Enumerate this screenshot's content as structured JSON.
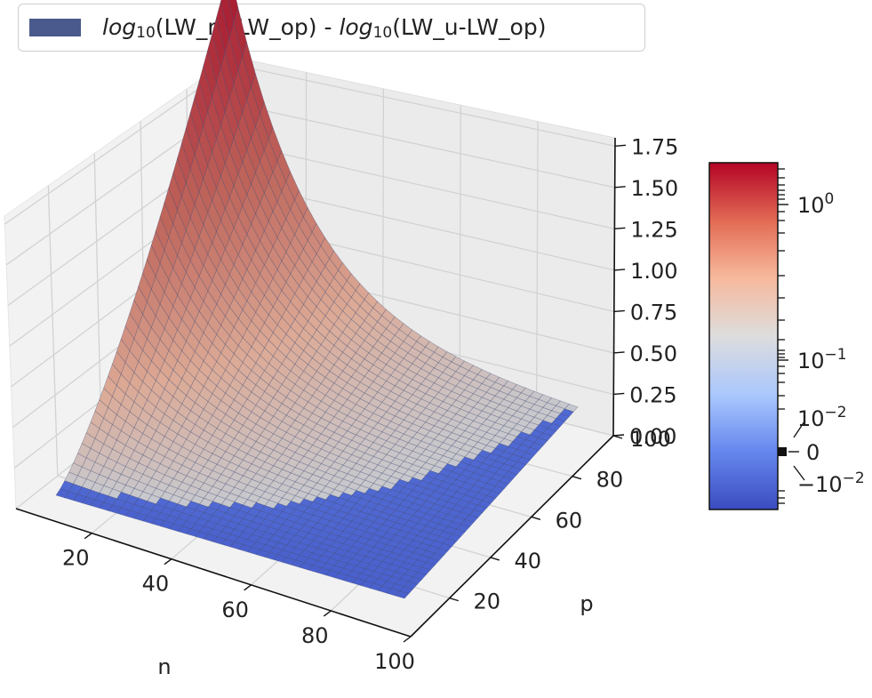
{
  "legend": {
    "label_prefix": "log",
    "label_base": "10",
    "label_mid": "(LW_m-LW_op) - ",
    "label_suffix": "(LW_u-LW_op)",
    "color": "#4a5a8c"
  },
  "chart_data": {
    "type": "surface3d",
    "title": "",
    "xlabel": "n",
    "ylabel": "p",
    "zlabel": "",
    "xlim": [
      1,
      100
    ],
    "ylim": [
      1,
      100
    ],
    "zlim": [
      0,
      1.8
    ],
    "x_ticks": [
      "20",
      "40",
      "60",
      "80",
      "100"
    ],
    "y_ticks": [
      "20",
      "40",
      "60",
      "80",
      "100"
    ],
    "z_ticks": [
      "0.00",
      "0.25",
      "0.50",
      "0.75",
      "1.00",
      "1.25",
      "1.50",
      "1.75"
    ],
    "z_tick_values": [
      0,
      0.25,
      0.5,
      0.75,
      1.0,
      1.25,
      1.5,
      1.75
    ],
    "surface": {
      "x": [
        1,
        10,
        20,
        30,
        40,
        50,
        60,
        70,
        80,
        90,
        100
      ],
      "y": [
        1,
        10,
        20,
        30,
        40,
        50,
        60,
        70,
        80,
        90,
        100
      ],
      "z_max_at": [
        1,
        100
      ],
      "z_max": 1.78,
      "z_min": 0.0
    },
    "colorbar": {
      "colormap": "coolwarm",
      "scale": "symlog",
      "tick_labels": [
        "10^0",
        "10^-1",
        "10^-2",
        "0",
        "-10^-2"
      ],
      "colors": [
        "#3b4cc0",
        "#7b9ff9",
        "#c0d4f5",
        "#dddddd",
        "#f2cbb7",
        "#ee8468",
        "#b40426"
      ]
    }
  }
}
